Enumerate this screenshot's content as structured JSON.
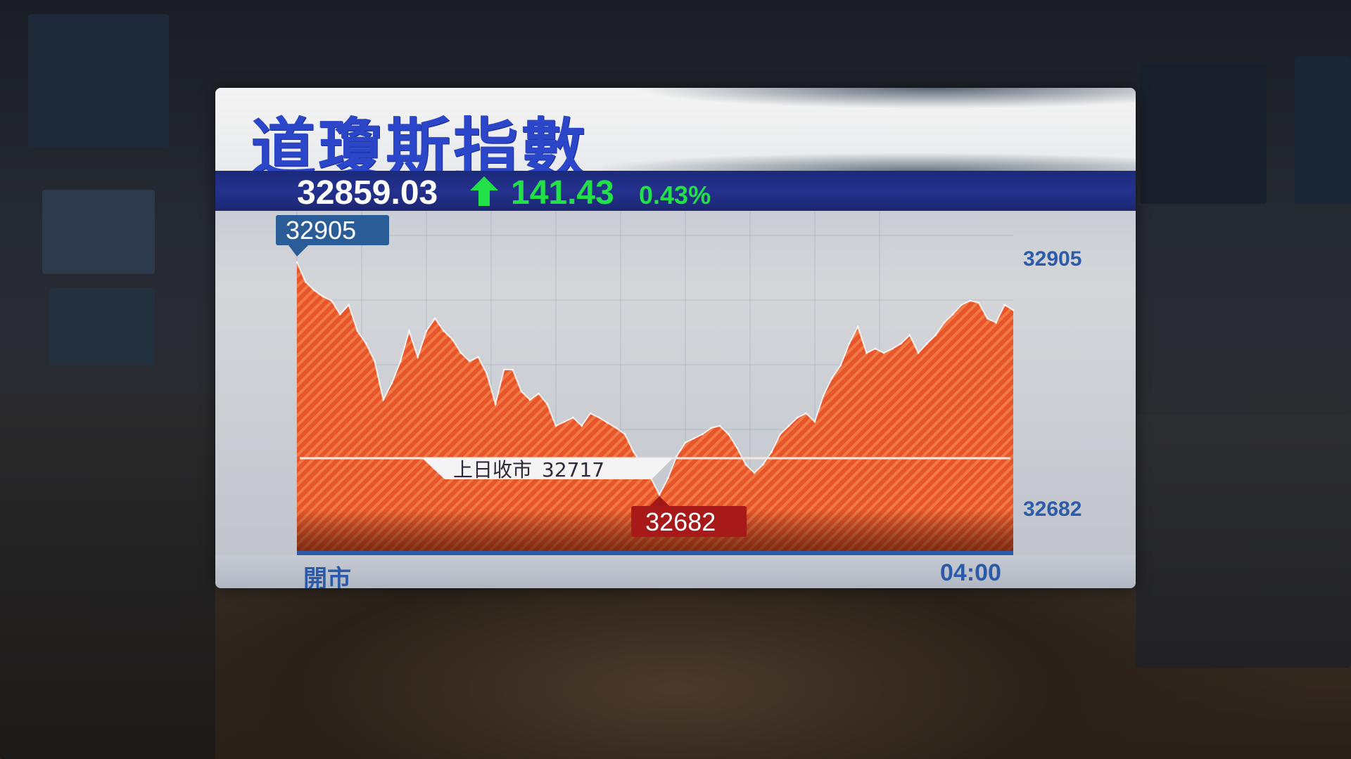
{
  "title": "道瓊斯指數",
  "quote": {
    "last": "32859.03",
    "change": "141.43",
    "change_pct": "0.43%",
    "direction_icon": "arrow-up-icon",
    "up_color": "#22e048"
  },
  "chart_data": {
    "type": "area",
    "title": "道瓊斯指數",
    "x_start_label": "開市",
    "x_end_label": "04:00",
    "ylim": [
      32682,
      32905
    ],
    "y_tick_labels": [
      "32905",
      "32682"
    ],
    "high_label": "32905",
    "low_label": "32682",
    "prev_close": {
      "label": "上日收市",
      "value": 32717,
      "value_text": "32717"
    },
    "fill_color": "#e8552a",
    "grid": true,
    "values": [
      32905,
      32886,
      32878,
      32872,
      32868,
      32855,
      32864,
      32839,
      32827,
      32810,
      32773,
      32789,
      32810,
      32839,
      32814,
      32839,
      32851,
      32839,
      32831,
      32818,
      32810,
      32814,
      32798,
      32769,
      32802,
      32802,
      32781,
      32773,
      32779,
      32769,
      32748,
      32752,
      32756,
      32748,
      32760,
      32756,
      32751,
      32746,
      32740,
      32723,
      32711,
      32698,
      32682,
      32698,
      32719,
      32732,
      32736,
      32740,
      32746,
      32748,
      32740,
      32727,
      32711,
      32703,
      32711,
      32723,
      32740,
      32748,
      32756,
      32760,
      32752,
      32777,
      32794,
      32806,
      32827,
      32843,
      32818,
      32822,
      32818,
      32822,
      32827,
      32835,
      32818,
      32827,
      32835,
      32847,
      32855,
      32864,
      32868,
      32866,
      32851,
      32847,
      32864,
      32859
    ]
  }
}
